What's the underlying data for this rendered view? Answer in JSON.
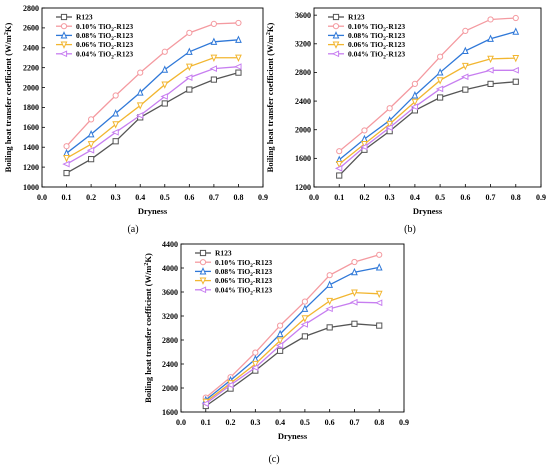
{
  "chart_data": [
    {
      "panel": "(a)",
      "type": "line",
      "xlabel": "Dryness",
      "ylabel": "Boiling heat transfer coefficient (W/m²K)",
      "xlim": [
        0.0,
        0.9
      ],
      "ylim": [
        1000,
        2800
      ],
      "xticks": [
        "0.0",
        "0.1",
        "0.2",
        "0.3",
        "0.4",
        "0.5",
        "0.6",
        "0.7",
        "0.8",
        "0.9"
      ],
      "yticks": [
        "1000",
        "1200",
        "1400",
        "1600",
        "1800",
        "2000",
        "2200",
        "2400",
        "2600",
        "2800"
      ],
      "x": [
        0.1,
        0.2,
        0.3,
        0.4,
        0.5,
        0.6,
        0.7,
        0.8
      ],
      "legend_position": "top-left",
      "series": [
        {
          "name": "R123",
          "color": "#555555",
          "values": [
            1140,
            1280,
            1460,
            1700,
            1840,
            1980,
            2080,
            2150
          ]
        },
        {
          "name": "0.10% TiO₂-R123",
          "color": "#f49aa0",
          "values": [
            1410,
            1680,
            1920,
            2150,
            2360,
            2550,
            2640,
            2650
          ]
        },
        {
          "name": "0.08% TiO₂-R123",
          "color": "#2f78d8",
          "values": [
            1340,
            1530,
            1740,
            1950,
            2180,
            2360,
            2460,
            2480
          ]
        },
        {
          "name": "0.06% TiO₂-R123",
          "color": "#f2b630",
          "values": [
            1290,
            1430,
            1630,
            1820,
            2030,
            2210,
            2300,
            2300
          ]
        },
        {
          "name": "0.04% TiO₂-R123",
          "color": "#c77ef0",
          "values": [
            1230,
            1370,
            1550,
            1720,
            1910,
            2100,
            2190,
            2210
          ]
        }
      ]
    },
    {
      "panel": "(b)",
      "type": "line",
      "xlabel": "Dryness",
      "ylabel": "Boiling heat transfer coefficient (W/m²K)",
      "xlim": [
        0.0,
        0.9
      ],
      "ylim": [
        1200,
        3700
      ],
      "xticks": [
        "0.0",
        "0.1",
        "0.2",
        "0.3",
        "0.4",
        "0.5",
        "0.6",
        "0.7",
        "0.8",
        "0.9"
      ],
      "yticks": [
        "1200",
        "1600",
        "2000",
        "2400",
        "2800",
        "3200",
        "3600"
      ],
      "x": [
        0.1,
        0.2,
        0.3,
        0.4,
        0.5,
        0.6,
        0.7,
        0.8
      ],
      "legend_position": "top-left",
      "series": [
        {
          "name": "R123",
          "color": "#555555",
          "values": [
            1360,
            1720,
            1980,
            2270,
            2450,
            2560,
            2640,
            2670
          ]
        },
        {
          "name": "0.10% TiO₂-R123",
          "color": "#f49aa0",
          "values": [
            1700,
            1990,
            2300,
            2640,
            3020,
            3380,
            3540,
            3560
          ]
        },
        {
          "name": "0.08% TiO₂-R123",
          "color": "#2f78d8",
          "values": [
            1580,
            1870,
            2130,
            2480,
            2800,
            3100,
            3270,
            3370
          ]
        },
        {
          "name": "0.06% TiO₂-R123",
          "color": "#f2b630",
          "values": [
            1520,
            1800,
            2080,
            2390,
            2690,
            2890,
            2990,
            3000
          ]
        },
        {
          "name": "0.04% TiO₂-R123",
          "color": "#c77ef0",
          "values": [
            1460,
            1760,
            2030,
            2320,
            2570,
            2740,
            2830,
            2830
          ]
        }
      ]
    },
    {
      "panel": "(c)",
      "type": "line",
      "xlabel": "Dryness",
      "ylabel": "Boiling heat transfer coefficient (W/m²K)",
      "xlim": [
        0.0,
        0.9
      ],
      "ylim": [
        1600,
        4400
      ],
      "xticks": [
        "0.0",
        "0.1",
        "0.2",
        "0.3",
        "0.4",
        "0.5",
        "0.6",
        "0.7",
        "0.8",
        "0.9"
      ],
      "yticks": [
        "1600",
        "2000",
        "2400",
        "2800",
        "3200",
        "3600",
        "4000",
        "4400"
      ],
      "x": [
        0.1,
        0.2,
        0.3,
        0.4,
        0.5,
        0.6,
        0.7,
        0.8
      ],
      "legend_position": "top-left",
      "series": [
        {
          "name": "R123",
          "color": "#555555",
          "values": [
            1700,
            1990,
            2290,
            2620,
            2860,
            3010,
            3070,
            3040
          ]
        },
        {
          "name": "0.10% TiO₂-R123",
          "color": "#f49aa0",
          "values": [
            1840,
            2180,
            2590,
            3040,
            3440,
            3880,
            4100,
            4220
          ]
        },
        {
          "name": "0.08% TiO₂-R123",
          "color": "#2f78d8",
          "values": [
            1800,
            2130,
            2480,
            2900,
            3320,
            3720,
            3930,
            4010
          ]
        },
        {
          "name": "0.06% TiO₂-R123",
          "color": "#f2b630",
          "values": [
            1770,
            2080,
            2400,
            2790,
            3160,
            3450,
            3590,
            3570
          ]
        },
        {
          "name": "0.04% TiO₂-R123",
          "color": "#c77ef0",
          "values": [
            1740,
            2050,
            2340,
            2710,
            3060,
            3320,
            3430,
            3420
          ]
        }
      ]
    }
  ]
}
